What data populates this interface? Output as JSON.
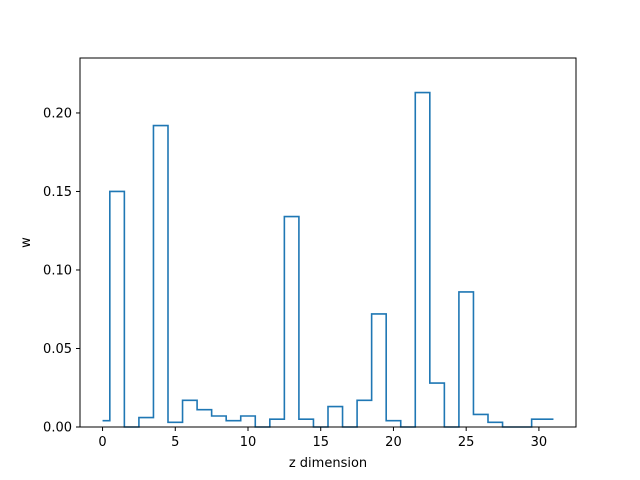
{
  "chart_data": {
    "type": "step",
    "title": "",
    "xlabel": "z dimension",
    "ylabel": "w",
    "xlim": [
      -1.55,
      32.55
    ],
    "ylim": [
      0,
      0.235
    ],
    "x_ticks": [
      0,
      5,
      10,
      15,
      20,
      25,
      30
    ],
    "x_tick_labels": [
      "0",
      "5",
      "10",
      "15",
      "20",
      "25",
      "30"
    ],
    "y_ticks": [
      0.0,
      0.05,
      0.1,
      0.15,
      0.2
    ],
    "y_tick_labels": [
      "0.00",
      "0.05",
      "0.10",
      "0.15",
      "0.20"
    ],
    "grid": false,
    "color": "#1f77b4",
    "x": [
      0,
      1,
      2,
      3,
      4,
      5,
      6,
      7,
      8,
      9,
      10,
      11,
      12,
      13,
      14,
      15,
      16,
      17,
      18,
      19,
      20,
      21,
      22,
      23,
      24,
      25,
      26,
      27,
      28,
      29,
      30,
      31
    ],
    "values": [
      0.004,
      0.15,
      0.0,
      0.006,
      0.192,
      0.003,
      0.017,
      0.011,
      0.007,
      0.004,
      0.007,
      0.0,
      0.005,
      0.134,
      0.005,
      0.0,
      0.013,
      0.0,
      0.017,
      0.072,
      0.004,
      0.0,
      0.213,
      0.028,
      0.0,
      0.086,
      0.008,
      0.003,
      0.0,
      0.0,
      0.005,
      0.005
    ]
  }
}
